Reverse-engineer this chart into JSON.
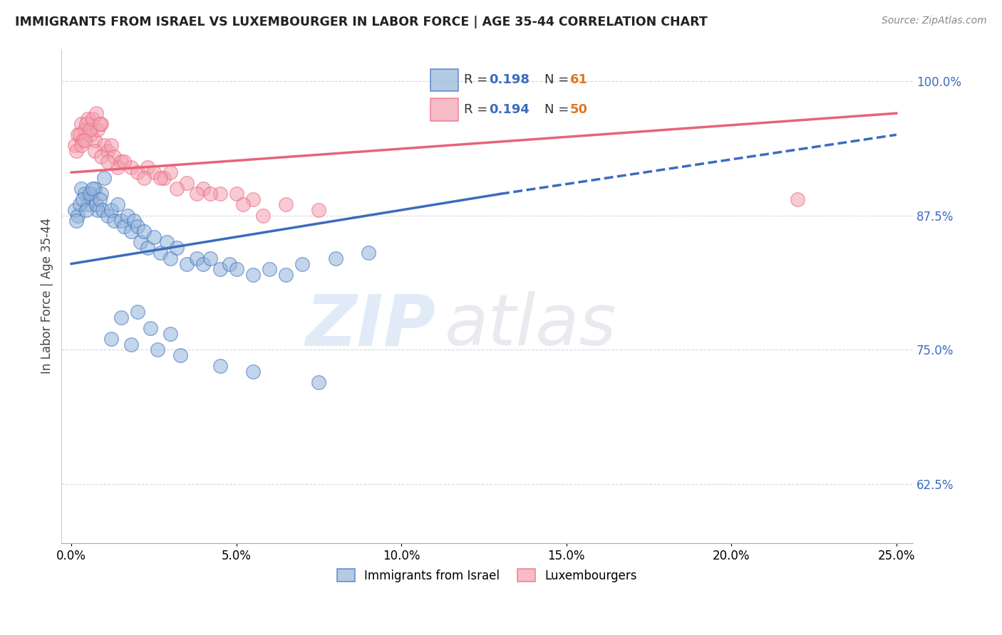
{
  "title": "IMMIGRANTS FROM ISRAEL VS LUXEMBOURGER IN LABOR FORCE | AGE 35-44 CORRELATION CHART",
  "source": "Source: ZipAtlas.com",
  "ylabel": "In Labor Force | Age 35-44",
  "xlabel_ticks": [
    "0.0%",
    "5.0%",
    "10.0%",
    "15.0%",
    "20.0%",
    "25.0%"
  ],
  "xlabel_vals": [
    0.0,
    5.0,
    10.0,
    15.0,
    20.0,
    25.0
  ],
  "ylim": [
    57.0,
    103.0
  ],
  "xlim": [
    -0.3,
    25.5
  ],
  "yticks": [
    62.5,
    75.0,
    87.5,
    100.0
  ],
  "ytick_labels": [
    "62.5%",
    "75.0%",
    "87.5%",
    "100.0%"
  ],
  "legend_label_blue": "Immigrants from Israel",
  "legend_label_pink": "Luxembourgers",
  "blue_color": "#92B4D9",
  "pink_color": "#F4A0B0",
  "blue_line_color": "#3B6BC0",
  "pink_line_color": "#E8637A",
  "r_color": "#3B6BC0",
  "n_color": "#E07820",
  "blue_x": [
    0.1,
    0.2,
    0.3,
    0.4,
    0.5,
    0.6,
    0.7,
    0.8,
    0.9,
    1.0,
    0.15,
    0.25,
    0.35,
    0.45,
    0.55,
    0.65,
    0.75,
    0.85,
    0.95,
    1.1,
    1.2,
    1.3,
    1.4,
    1.5,
    1.6,
    1.7,
    1.8,
    1.9,
    2.0,
    2.1,
    2.2,
    2.3,
    2.5,
    2.7,
    2.9,
    3.0,
    3.2,
    3.5,
    3.8,
    4.0,
    4.2,
    4.5,
    4.8,
    5.0,
    5.5,
    6.0,
    6.5,
    7.0,
    8.0,
    9.0,
    1.5,
    2.0,
    2.4,
    3.0,
    1.2,
    1.8,
    2.6,
    3.3,
    4.5,
    5.5,
    7.5
  ],
  "blue_y": [
    88.0,
    87.5,
    90.0,
    89.5,
    88.5,
    89.0,
    90.0,
    88.0,
    89.5,
    91.0,
    87.0,
    88.5,
    89.0,
    88.0,
    89.5,
    90.0,
    88.5,
    89.0,
    88.0,
    87.5,
    88.0,
    87.0,
    88.5,
    87.0,
    86.5,
    87.5,
    86.0,
    87.0,
    86.5,
    85.0,
    86.0,
    84.5,
    85.5,
    84.0,
    85.0,
    83.5,
    84.5,
    83.0,
    83.5,
    83.0,
    83.5,
    82.5,
    83.0,
    82.5,
    82.0,
    82.5,
    82.0,
    83.0,
    83.5,
    84.0,
    78.0,
    78.5,
    77.0,
    76.5,
    76.0,
    75.5,
    75.0,
    74.5,
    73.5,
    73.0,
    72.0
  ],
  "pink_x": [
    0.1,
    0.2,
    0.3,
    0.4,
    0.5,
    0.6,
    0.7,
    0.8,
    0.9,
    1.0,
    0.15,
    0.25,
    0.35,
    0.45,
    0.55,
    0.65,
    0.75,
    0.85,
    1.1,
    1.2,
    1.3,
    1.5,
    1.8,
    2.0,
    2.3,
    2.5,
    2.8,
    3.0,
    3.5,
    4.0,
    4.5,
    5.0,
    5.5,
    6.5,
    7.5,
    0.3,
    0.7,
    1.4,
    2.2,
    3.2,
    4.2,
    5.2,
    1.6,
    0.9,
    2.7,
    0.4,
    1.1,
    3.8,
    22.0,
    5.8
  ],
  "pink_y": [
    94.0,
    95.0,
    96.0,
    95.5,
    96.5,
    95.0,
    94.5,
    95.5,
    96.0,
    94.0,
    93.5,
    95.0,
    94.5,
    96.0,
    95.5,
    96.5,
    97.0,
    96.0,
    93.5,
    94.0,
    93.0,
    92.5,
    92.0,
    91.5,
    92.0,
    91.5,
    91.0,
    91.5,
    90.5,
    90.0,
    89.5,
    89.5,
    89.0,
    88.5,
    88.0,
    94.0,
    93.5,
    92.0,
    91.0,
    90.0,
    89.5,
    88.5,
    92.5,
    93.0,
    91.0,
    94.5,
    92.5,
    89.5,
    89.0,
    87.5
  ],
  "blue_line_x0": 0.0,
  "blue_line_y0": 83.0,
  "blue_line_x1": 13.0,
  "blue_line_y1": 89.5,
  "blue_dash_x0": 13.0,
  "blue_dash_y0": 89.5,
  "blue_dash_x1": 25.0,
  "blue_dash_y1": 95.0,
  "pink_line_x0": 0.0,
  "pink_line_y0": 91.5,
  "pink_line_x1": 25.0,
  "pink_line_y1": 97.0,
  "watermark_zip": "ZIP",
  "watermark_atlas": "atlas"
}
